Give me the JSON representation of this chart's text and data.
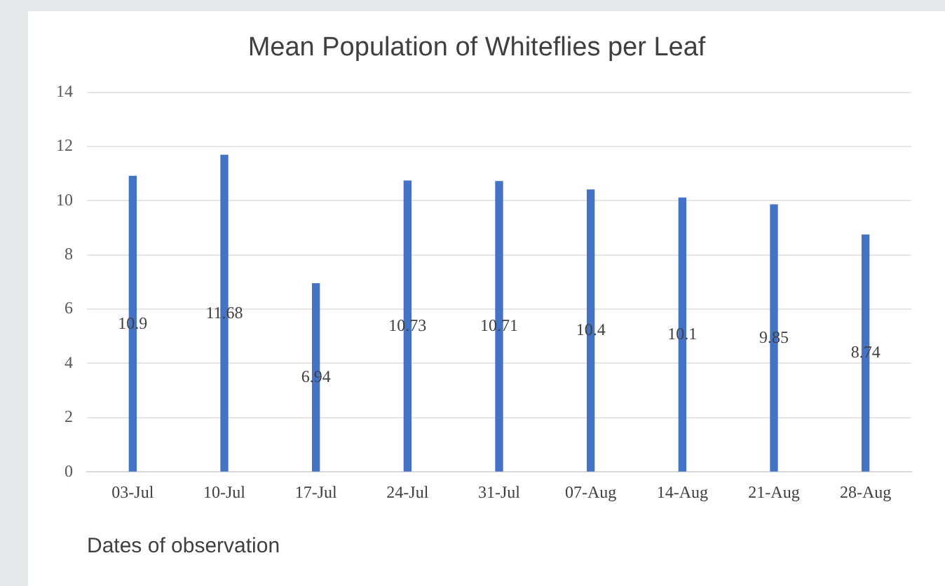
{
  "chart_data": {
    "type": "bar",
    "title": "Mean Population of Whiteflies per Leaf",
    "xlabel": "Dates of observation",
    "categories": [
      "03-Jul",
      "10-Jul",
      "17-Jul",
      "24-Jul",
      "31-Jul",
      "07-Aug",
      "14-Aug",
      "21-Aug",
      "28-Aug"
    ],
    "values": [
      10.9,
      11.68,
      6.94,
      10.73,
      10.71,
      10.4,
      10.1,
      9.85,
      8.74
    ],
    "color": "#4472c4",
    "ylim": [
      0,
      14
    ],
    "yticks": [
      0,
      2,
      4,
      6,
      8,
      10,
      12,
      14
    ],
    "grid": "y",
    "data_labels": true,
    "legend": false
  }
}
